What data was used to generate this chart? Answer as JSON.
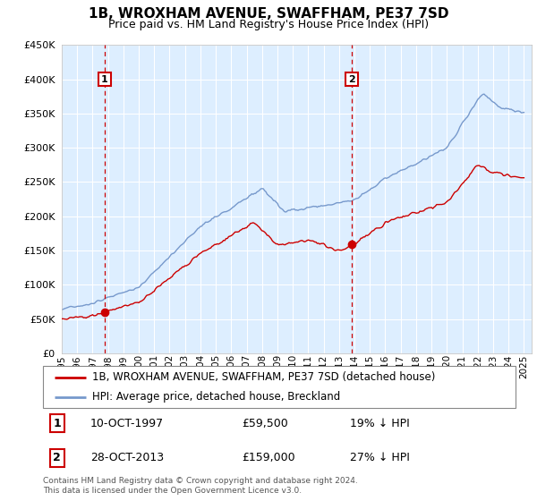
{
  "title": "1B, WROXHAM AVENUE, SWAFFHAM, PE37 7SD",
  "subtitle": "Price paid vs. HM Land Registry's House Price Index (HPI)",
  "legend_line1": "1B, WROXHAM AVENUE, SWAFFHAM, PE37 7SD (detached house)",
  "legend_line2": "HPI: Average price, detached house, Breckland",
  "annotation1_date": "10-OCT-1997",
  "annotation1_price": "£59,500",
  "annotation1_hpi": "19% ↓ HPI",
  "annotation2_date": "28-OCT-2013",
  "annotation2_price": "£159,000",
  "annotation2_hpi": "27% ↓ HPI",
  "footer": "Contains HM Land Registry data © Crown copyright and database right 2024.\nThis data is licensed under the Open Government Licence v3.0.",
  "red_color": "#cc0000",
  "blue_color": "#7799cc",
  "background_color": "#ddeeff",
  "grid_color": "#ffffff",
  "ylim": [
    0,
    450000
  ],
  "xlim_start": 1995.0,
  "xlim_end": 2025.5,
  "point1_x": 1997.78,
  "point1_y": 59500,
  "point2_x": 2013.82,
  "point2_y": 159000
}
